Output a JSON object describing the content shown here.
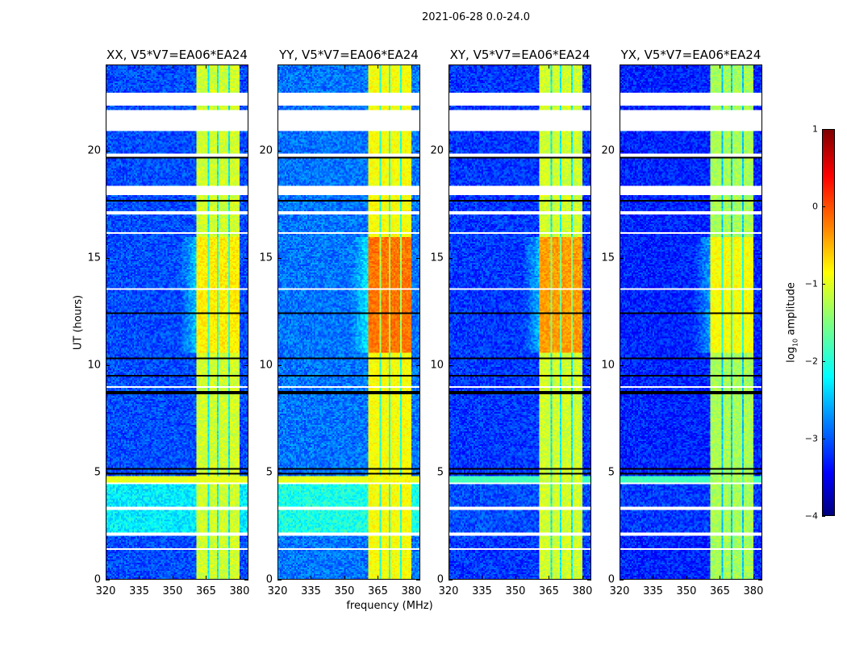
{
  "chart_data": {
    "type": "heatmap",
    "title": "2021-06-28 0.0-24.0",
    "xlabel": "frequency (MHz)",
    "ylabel": "UT (hours)",
    "xlim": [
      320,
      384
    ],
    "ylim": [
      0,
      24
    ],
    "xticks": [
      320,
      335,
      350,
      365,
      380
    ],
    "yticks": [
      0,
      5,
      10,
      15,
      20
    ],
    "colorbar": {
      "label_prefix": "log",
      "label_sub": "10",
      "label_suffix": " amplitude",
      "range": [
        -4,
        1
      ],
      "ticks": [
        1,
        0,
        -1,
        -2,
        -3,
        -4
      ],
      "tick_labels": [
        "1",
        "0",
        "−1",
        "−2",
        "−3",
        "−4"
      ],
      "colormap": "jet"
    },
    "active_band_mhz": [
      360.5,
      380
    ],
    "dark_channels_mhz": [
      366,
      370.5,
      375.5
    ],
    "flagged_gaps_hours": [
      [
        22.1,
        22.7
      ],
      [
        20.9,
        21.9
      ],
      [
        19.75,
        19.9
      ],
      [
        17.9,
        18.4
      ],
      [
        17.0,
        17.2
      ],
      [
        16.1,
        16.2
      ],
      [
        13.5,
        13.6
      ],
      [
        8.9,
        9.0
      ],
      [
        4.45,
        4.5
      ],
      [
        3.25,
        3.4
      ],
      [
        2.0,
        2.2
      ],
      [
        1.35,
        1.45
      ]
    ],
    "dark_rows_hours": [
      22.7,
      19.7,
      17.65,
      12.4,
      10.3,
      9.5,
      8.7,
      5.15,
      4.9
    ],
    "panels": [
      {
        "title": "XX, V5*V7=EA06*EA24",
        "background_level": -3.0,
        "band_level": -1.1,
        "enhanced_level": -0.8,
        "low_hours_level": -2.2
      },
      {
        "title": "YY, V5*V7=EA06*EA24",
        "background_level": -2.8,
        "band_level": -0.9,
        "enhanced_level": -0.2,
        "low_hours_level": -2.0
      },
      {
        "title": "XY, V5*V7=EA06*EA24",
        "background_level": -3.1,
        "band_level": -1.1,
        "enhanced_level": -0.4,
        "low_hours_level": -3.0
      },
      {
        "title": "YX, V5*V7=EA06*EA24",
        "background_level": -3.2,
        "band_level": -1.3,
        "enhanced_level": -0.9,
        "low_hours_level": -3.1
      }
    ]
  }
}
